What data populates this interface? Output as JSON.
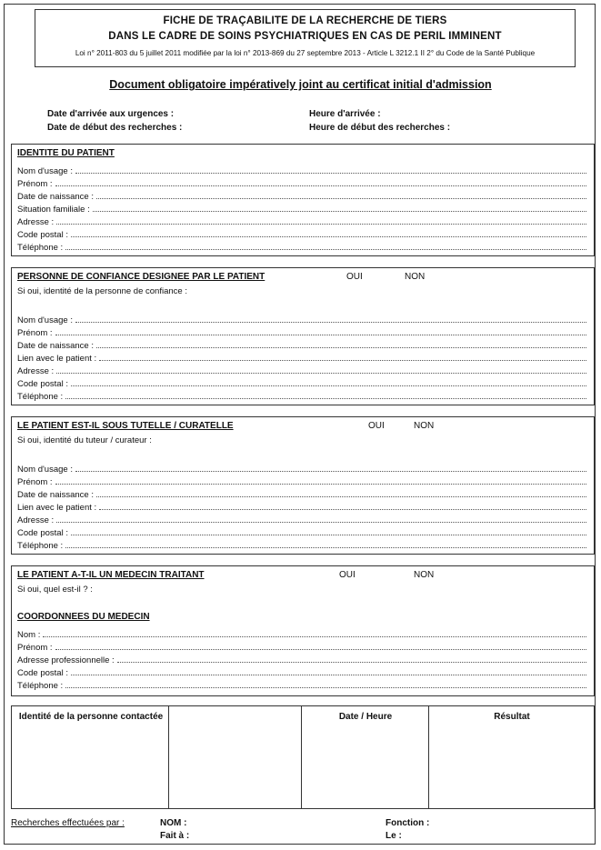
{
  "header": {
    "line1": "FICHE DE TRAÇABILITE DE LA RECHERCHE DE TIERS",
    "line2": "DANS LE CADRE DE SOINS PSYCHIATRIQUES EN CAS DE PERIL IMMINENT",
    "legal": "Loi n° 2011-803 du 5 juillet 2011 modifiée par la loi n° 2013-869 du 27 septembre 2013 - Article L 3212.1 II 2° du Code de la Santé Publique"
  },
  "doc_title": "Document obligatoire impératively joint au certificat initial d'admission",
  "meta": {
    "date_admission": "Date d'arrivée aux urgences :",
    "date_debut": "Date de début des recherches :",
    "heure_arrivee": "Heure d'arrivée :",
    "heure_debut": "Heure de début des recherches :"
  },
  "identity": {
    "title": "IDENTITE DU PATIENT",
    "fields": [
      "Nom d'usage :",
      "Prénom :",
      "Date de naissance :",
      "Situation familiale :",
      "Adresse :",
      "Code postal :",
      "Téléphone :"
    ]
  },
  "person": {
    "title": "PERSONNE DE CONFIANCE DESIGNEE PAR LE PATIENT",
    "oui": "OUI",
    "non": "NON",
    "sub": "Si oui, identité de la personne de confiance :",
    "fields": [
      "Nom d'usage :",
      "Prénom :",
      "Date de naissance :",
      "Lien avec le patient :",
      "Adresse :",
      "Code postal :",
      "Téléphone :"
    ]
  },
  "tutelle": {
    "title": "LE PATIENT EST-IL SOUS TUTELLE / CURATELLE",
    "oui": "OUI",
    "non": "NON",
    "sub": "Si oui, identité du tuteur / curateur :",
    "fields": [
      "Nom d'usage :",
      "Prénom :",
      "Date de naissance :",
      "Lien avec le patient :",
      "Adresse :",
      "Code postal :",
      "Téléphone :"
    ]
  },
  "medecin": {
    "title": "LE PATIENT A-T-IL UN MEDECIN TRAITANT",
    "oui": "OUI",
    "non": "NON",
    "sub": "Si oui, quel est-il ? :",
    "coord_title": "COORDONNEES DU MEDECIN",
    "fields": [
      "Nom :",
      "Prénom :",
      "Adresse professionnelle :",
      "Code postal :",
      "Téléphone :"
    ]
  },
  "table": {
    "col1": "Identité de la personne contactée",
    "col2": "",
    "col3": "Date / Heure",
    "col4": "Résultat"
  },
  "footer": {
    "effectuees": "Recherches effectuées par :",
    "nom": "NOM :",
    "fait": "Fait à :",
    "fonction": "Fonction :",
    "le": "Le :"
  }
}
